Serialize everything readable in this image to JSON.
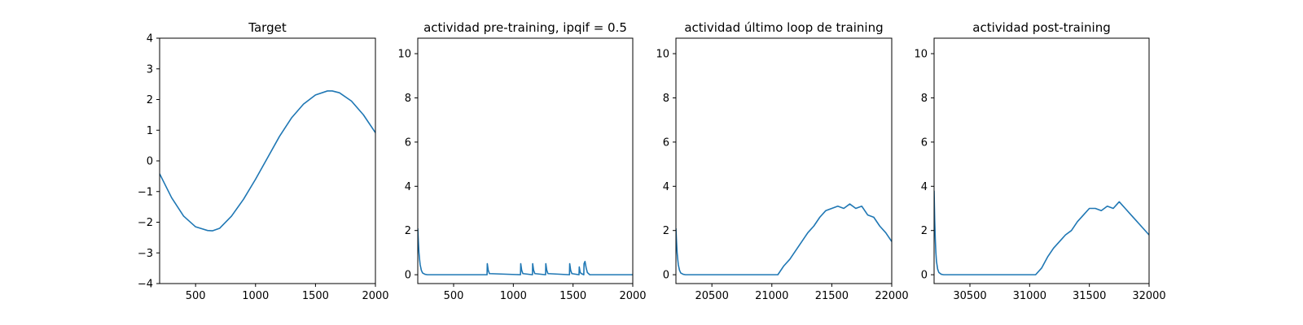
{
  "chart_data": [
    {
      "type": "line",
      "title": "Target",
      "xlim": [
        200,
        2000
      ],
      "ylim": [
        -4,
        4
      ],
      "xticks": [
        500,
        1000,
        1500,
        2000
      ],
      "yticks": [
        -4,
        -3,
        -2,
        -1,
        0,
        1,
        2,
        3,
        4
      ],
      "color": "#1f77b4",
      "series": [
        {
          "x": [
            200,
            300,
            400,
            500,
            600,
            640,
            700,
            800,
            900,
            1000,
            1100,
            1200,
            1300,
            1400,
            1500,
            1600,
            1640,
            1700,
            1800,
            1900,
            2000
          ],
          "y": [
            -0.42,
            -1.2,
            -1.8,
            -2.15,
            -2.27,
            -2.28,
            -2.2,
            -1.8,
            -1.25,
            -0.6,
            0.1,
            0.8,
            1.4,
            1.85,
            2.15,
            2.28,
            2.28,
            2.22,
            1.95,
            1.5,
            0.92
          ]
        }
      ]
    },
    {
      "type": "line",
      "title": "actividad pre-training, ipqif = 0.5",
      "xlim": [
        200,
        2000
      ],
      "ylim": [
        -0.4,
        10.7
      ],
      "xticks": [
        500,
        1000,
        1500,
        2000
      ],
      "yticks": [
        0,
        2,
        4,
        6,
        8,
        10
      ],
      "color": "#1f77b4",
      "series": [
        {
          "x": [
            200,
            205,
            210,
            215,
            220,
            230,
            240,
            260,
            280,
            300,
            780,
            782,
            790,
            800,
            1060,
            1062,
            1070,
            1080,
            1160,
            1162,
            1170,
            1180,
            1270,
            1272,
            1280,
            1290,
            1470,
            1472,
            1480,
            1490,
            1550,
            1552,
            1560,
            1570,
            1590,
            1592,
            1600,
            1610,
            1620,
            1640,
            2000
          ],
          "y": [
            2.1,
            1.5,
            1.0,
            0.7,
            0.45,
            0.2,
            0.08,
            0.02,
            0.0,
            0.0,
            0.0,
            0.5,
            0.2,
            0.05,
            0.0,
            0.5,
            0.2,
            0.05,
            0.0,
            0.5,
            0.2,
            0.05,
            0.0,
            0.5,
            0.2,
            0.05,
            0.0,
            0.5,
            0.2,
            0.05,
            0.0,
            0.35,
            0.1,
            0.05,
            0.0,
            0.5,
            0.6,
            0.3,
            0.1,
            0.0,
            0.0
          ]
        }
      ]
    },
    {
      "type": "line",
      "title": "actividad último loop de training",
      "xlim": [
        20200,
        22000
      ],
      "ylim": [
        -0.4,
        10.7
      ],
      "xticks": [
        20500,
        21000,
        21500,
        22000
      ],
      "yticks": [
        0,
        2,
        4,
        6,
        8,
        10
      ],
      "color": "#1f77b4",
      "series": [
        {
          "x": [
            20200,
            20205,
            20210,
            20215,
            20220,
            20230,
            20240,
            20260,
            20280,
            20300,
            21050,
            21100,
            21150,
            21200,
            21250,
            21300,
            21350,
            21400,
            21450,
            21500,
            21550,
            21600,
            21650,
            21700,
            21750,
            21800,
            21850,
            21900,
            21950,
            22000
          ],
          "y": [
            2.1,
            1.5,
            1.0,
            0.7,
            0.45,
            0.2,
            0.08,
            0.02,
            0.0,
            0.0,
            0.0,
            0.4,
            0.7,
            1.1,
            1.5,
            1.9,
            2.2,
            2.6,
            2.9,
            3.0,
            3.1,
            3.0,
            3.2,
            3.0,
            3.1,
            2.7,
            2.6,
            2.2,
            1.9,
            1.5
          ]
        }
      ]
    },
    {
      "type": "line",
      "title": "actividad post-training",
      "xlim": [
        30200,
        32000
      ],
      "ylim": [
        -0.4,
        10.7
      ],
      "xticks": [
        30500,
        31000,
        31500,
        32000
      ],
      "yticks": [
        0,
        2,
        4,
        6,
        8,
        10
      ],
      "color": "#1f77b4",
      "series": [
        {
          "x": [
            30200,
            30205,
            30210,
            30215,
            30220,
            30230,
            30240,
            30260,
            30280,
            30300,
            31050,
            31100,
            31150,
            31200,
            31250,
            31300,
            31350,
            31400,
            31450,
            31500,
            31550,
            31600,
            31650,
            31700,
            31750,
            31800,
            31850,
            31900,
            31950,
            32000
          ],
          "y": [
            3.8,
            2.5,
            1.6,
            1.0,
            0.6,
            0.25,
            0.1,
            0.02,
            0.0,
            0.0,
            0.0,
            0.3,
            0.8,
            1.2,
            1.5,
            1.8,
            2.0,
            2.4,
            2.7,
            3.0,
            3.0,
            2.9,
            3.1,
            3.0,
            3.3,
            3.0,
            2.7,
            2.4,
            2.1,
            1.8
          ]
        }
      ]
    }
  ]
}
